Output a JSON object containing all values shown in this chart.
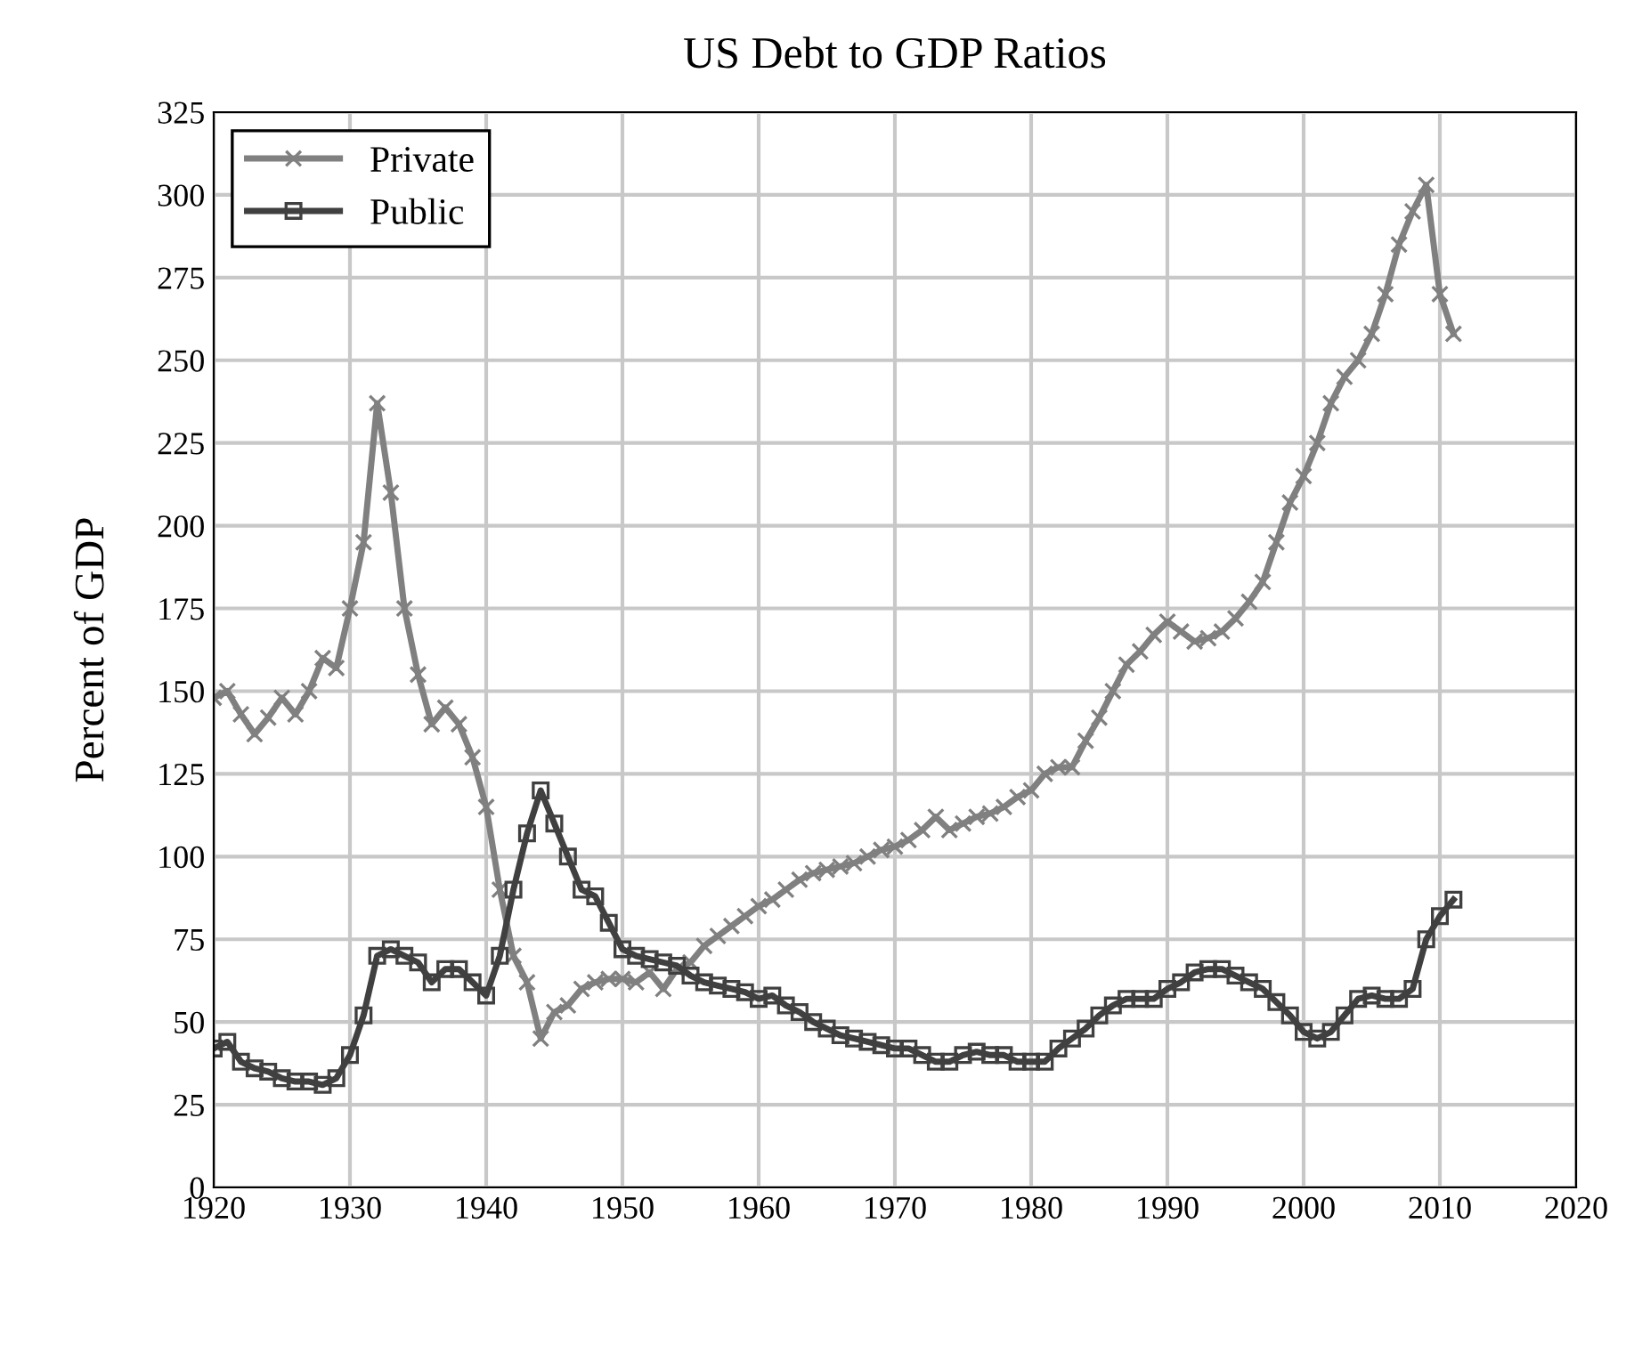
{
  "chart_data": {
    "type": "line",
    "title": "US Debt to GDP Ratios",
    "ylabel": "Percent of GDP",
    "x": [
      1920,
      1921,
      1922,
      1923,
      1924,
      1925,
      1926,
      1927,
      1928,
      1929,
      1930,
      1931,
      1932,
      1933,
      1934,
      1935,
      1936,
      1937,
      1938,
      1939,
      1940,
      1941,
      1942,
      1943,
      1944,
      1945,
      1946,
      1947,
      1948,
      1949,
      1950,
      1951,
      1952,
      1953,
      1954,
      1955,
      1956,
      1957,
      1958,
      1959,
      1960,
      1961,
      1962,
      1963,
      1964,
      1965,
      1966,
      1967,
      1968,
      1969,
      1970,
      1971,
      1972,
      1973,
      1974,
      1975,
      1976,
      1977,
      1978,
      1979,
      1980,
      1981,
      1982,
      1983,
      1984,
      1985,
      1986,
      1987,
      1988,
      1989,
      1990,
      1991,
      1992,
      1993,
      1994,
      1995,
      1996,
      1997,
      1998,
      1999,
      2000,
      2001,
      2002,
      2003,
      2004,
      2005,
      2006,
      2007,
      2008,
      2009,
      2010,
      2011
    ],
    "series": [
      {
        "name": "Private",
        "color": "#808080",
        "marker": "cross",
        "values": [
          148,
          150,
          143,
          137,
          142,
          148,
          143,
          150,
          160,
          157,
          175,
          195,
          237,
          210,
          175,
          155,
          140,
          145,
          140,
          130,
          115,
          90,
          70,
          62,
          45,
          53,
          55,
          60,
          62,
          63,
          63,
          62,
          65,
          60,
          66,
          68,
          73,
          76,
          79,
          82,
          85,
          87,
          90,
          93,
          95,
          96,
          97,
          98,
          100,
          102,
          103,
          105,
          108,
          112,
          108,
          110,
          112,
          113,
          115,
          118,
          120,
          125,
          127,
          127,
          135,
          142,
          150,
          158,
          162,
          167,
          171,
          168,
          165,
          166,
          168,
          172,
          177,
          183,
          195,
          207,
          215,
          225,
          237,
          245,
          250,
          258,
          270,
          285,
          295,
          303,
          270,
          258
        ]
      },
      {
        "name": "Public",
        "color": "#404040",
        "marker": "square",
        "values": [
          42,
          44,
          38,
          36,
          35,
          33,
          32,
          32,
          31,
          33,
          40,
          52,
          70,
          72,
          70,
          68,
          62,
          66,
          66,
          62,
          58,
          70,
          90,
          107,
          120,
          110,
          100,
          90,
          88,
          80,
          72,
          70,
          69,
          68,
          67,
          64,
          62,
          61,
          60,
          59,
          57,
          58,
          55,
          53,
          50,
          48,
          46,
          45,
          44,
          43,
          42,
          42,
          40,
          38,
          38,
          40,
          41,
          40,
          40,
          38,
          38,
          38,
          42,
          45,
          48,
          52,
          55,
          57,
          57,
          57,
          60,
          62,
          65,
          66,
          66,
          64,
          62,
          60,
          56,
          52,
          47,
          45,
          47,
          52,
          57,
          58,
          57,
          57,
          60,
          75,
          82,
          87
        ]
      }
    ],
    "xlim": [
      1920,
      2020
    ],
    "xticks": [
      1920,
      1930,
      1940,
      1950,
      1960,
      1970,
      1980,
      1990,
      2000,
      2010,
      2020
    ],
    "ylim": [
      0,
      325
    ],
    "yticks": [
      0,
      25,
      50,
      75,
      100,
      125,
      150,
      175,
      200,
      225,
      250,
      275,
      300,
      325
    ],
    "grid": true,
    "legend": "top left",
    "line_style": "solid"
  }
}
